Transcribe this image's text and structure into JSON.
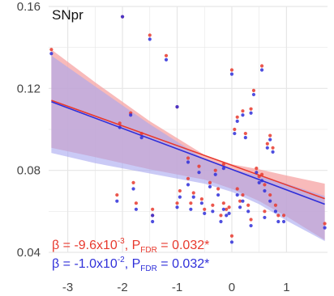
{
  "chart_data": {
    "type": "scatter",
    "title": "SNpr",
    "xlabel": "",
    "ylabel": "",
    "xlim": [
      -3.35,
      1.75
    ],
    "ylim": [
      0.04,
      0.16
    ],
    "x_ticks": [
      "-3",
      "-2",
      "-1",
      "0",
      "1"
    ],
    "y_ticks": [
      "0.04",
      "0.08",
      "0.12",
      "0.16"
    ],
    "grid": true,
    "colors": {
      "red": "#e8392e",
      "blue": "#2f2fd9",
      "red_band": "#f5a3a3",
      "blue_band": "#a6a6f0",
      "overlap_band": "#a878bf",
      "grid": "#e6e6e6"
    },
    "series": [
      {
        "color_key": "red",
        "fit": {
          "intercept": 0.0825,
          "slope": -0.0096
        },
        "band": {
          "x": [
            -3.3,
            -2.5,
            -1.5,
            -0.5,
            0,
            0.5,
            1,
            1.7
          ],
          "upper": [
            0.139,
            0.123,
            0.104,
            0.0875,
            0.083,
            0.0805,
            0.0775,
            0.0735
          ],
          "lower": [
            0.091,
            0.0865,
            0.0805,
            0.0755,
            0.071,
            0.065,
            0.0575,
            0.046
          ]
        },
        "points": [
          [
            -3.3,
            0.139
          ],
          [
            -2.0,
            0.155
          ],
          [
            -1.5,
            0.146
          ],
          [
            -1.2,
            0.136
          ],
          [
            -1.0,
            0.111
          ],
          [
            -2.05,
            0.103
          ],
          [
            -1.65,
            0.098
          ],
          [
            -1.85,
            0.108
          ],
          [
            -1.8,
            0.074
          ],
          [
            -2.1,
            0.068
          ],
          [
            -1.75,
            0.064
          ],
          [
            -1.45,
            0.061
          ],
          [
            -1.45,
            0.058
          ],
          [
            -1.0,
            0.064
          ],
          [
            -0.95,
            0.07
          ],
          [
            -0.8,
            0.076
          ],
          [
            -0.8,
            0.086
          ],
          [
            -0.7,
            0.069
          ],
          [
            -0.75,
            0.064
          ],
          [
            -0.6,
            0.082
          ],
          [
            -0.55,
            0.066
          ],
          [
            -0.5,
            0.061
          ],
          [
            -0.4,
            0.074
          ],
          [
            -0.35,
            0.063
          ],
          [
            -0.3,
            0.08
          ],
          [
            -0.25,
            0.071
          ],
          [
            -0.2,
            0.058
          ],
          [
            -0.15,
            0.083
          ],
          [
            -0.15,
            0.064
          ],
          [
            -0.1,
            0.061
          ],
          [
            -0.05,
            0.062
          ],
          [
            0.0,
            0.129
          ],
          [
            0.0,
            0.048
          ],
          [
            0.05,
            0.1
          ],
          [
            0.1,
            0.106
          ],
          [
            0.1,
            0.071
          ],
          [
            0.15,
            0.065
          ],
          [
            0.2,
            0.109
          ],
          [
            0.2,
            0.068
          ],
          [
            0.25,
            0.098
          ],
          [
            0.3,
            0.063
          ],
          [
            0.35,
            0.11
          ],
          [
            0.35,
            0.056
          ],
          [
            0.4,
            0.119
          ],
          [
            0.45,
            0.081
          ],
          [
            0.5,
            0.077
          ],
          [
            0.55,
            0.131
          ],
          [
            0.55,
            0.078
          ],
          [
            0.6,
            0.073
          ],
          [
            0.6,
            0.06
          ],
          [
            0.65,
            0.093
          ],
          [
            0.7,
            0.097
          ],
          [
            0.7,
            0.068
          ],
          [
            0.75,
            0.091
          ],
          [
            0.8,
            0.063
          ],
          [
            0.85,
            0.058
          ],
          [
            0.95,
            0.058
          ],
          [
            1.7,
            0.054
          ]
        ]
      },
      {
        "color_key": "blue",
        "fit": {
          "intercept": 0.0805,
          "slope": -0.01
        },
        "band": {
          "x": [
            -3.3,
            -2.5,
            -1.5,
            -0.5,
            0,
            0.5,
            1,
            1.7
          ],
          "upper": [
            0.136,
            0.121,
            0.1025,
            0.0855,
            0.0805,
            0.0775,
            0.0735,
            0.0675
          ],
          "lower": [
            0.0885,
            0.0835,
            0.0785,
            0.0735,
            0.0695,
            0.0635,
            0.0555,
            0.0455
          ]
        },
        "points": [
          [
            -3.3,
            0.137
          ],
          [
            -2.0,
            0.155
          ],
          [
            -1.5,
            0.144
          ],
          [
            -1.2,
            0.134
          ],
          [
            -1.0,
            0.111
          ],
          [
            -2.05,
            0.101
          ],
          [
            -1.65,
            0.096
          ],
          [
            -1.85,
            0.107
          ],
          [
            -1.8,
            0.071
          ],
          [
            -2.1,
            0.065
          ],
          [
            -1.75,
            0.061
          ],
          [
            -1.45,
            0.058
          ],
          [
            -1.45,
            0.055
          ],
          [
            -1.0,
            0.062
          ],
          [
            -0.95,
            0.067
          ],
          [
            -0.8,
            0.073
          ],
          [
            -0.8,
            0.084
          ],
          [
            -0.7,
            0.067
          ],
          [
            -0.75,
            0.061
          ],
          [
            -0.6,
            0.079
          ],
          [
            -0.55,
            0.064
          ],
          [
            -0.5,
            0.059
          ],
          [
            -0.4,
            0.072
          ],
          [
            -0.35,
            0.06
          ],
          [
            -0.3,
            0.078
          ],
          [
            -0.25,
            0.068
          ],
          [
            -0.2,
            0.055
          ],
          [
            -0.15,
            0.081
          ],
          [
            -0.15,
            0.061
          ],
          [
            -0.1,
            0.058
          ],
          [
            -0.05,
            0.059
          ],
          [
            0.0,
            0.127
          ],
          [
            0.0,
            0.045
          ],
          [
            0.05,
            0.098
          ],
          [
            0.1,
            0.104
          ],
          [
            0.1,
            0.068
          ],
          [
            0.15,
            0.062
          ],
          [
            0.2,
            0.107
          ],
          [
            0.2,
            0.065
          ],
          [
            0.25,
            0.096
          ],
          [
            0.3,
            0.06
          ],
          [
            0.35,
            0.108
          ],
          [
            0.35,
            0.053
          ],
          [
            0.4,
            0.117
          ],
          [
            0.45,
            0.079
          ],
          [
            0.5,
            0.074
          ],
          [
            0.55,
            0.129
          ],
          [
            0.55,
            0.075
          ],
          [
            0.6,
            0.07
          ],
          [
            0.6,
            0.057
          ],
          [
            0.65,
            0.091
          ],
          [
            0.7,
            0.095
          ],
          [
            0.7,
            0.065
          ],
          [
            0.75,
            0.089
          ],
          [
            0.8,
            0.06
          ],
          [
            0.85,
            0.055
          ],
          [
            0.95,
            0.055
          ],
          [
            1.7,
            0.052
          ]
        ]
      }
    ],
    "annotations": [
      {
        "color_key": "red",
        "prefix": "β = -9.6x10",
        "exp": "-3",
        "mid": ", P",
        "sub": "FDR",
        "suffix": " = 0.032*"
      },
      {
        "color_key": "blue",
        "prefix": "β = -1.0x10",
        "exp": "-2",
        "mid": ", P",
        "sub": "FDR",
        "suffix": " = 0.032*"
      }
    ]
  }
}
